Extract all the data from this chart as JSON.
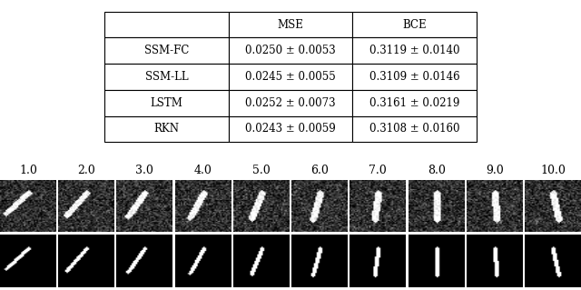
{
  "table_data": [
    [
      "SSM-FC",
      "0.0250 ± 0.0053",
      "0.3119 ± 0.0140"
    ],
    [
      "SSM-LL",
      "0.0245 ± 0.0055",
      "0.3109 ± 0.0146"
    ],
    [
      "LSTM",
      "0.0252 ± 0.0073",
      "0.3161 ± 0.0219"
    ],
    [
      "RKN",
      "0.0243 ± 0.0059",
      "0.3108 ± 0.0160"
    ]
  ],
  "col_labels": [
    "",
    "MSE",
    "BCE"
  ],
  "time_labels": [
    "1.0",
    "2.0",
    "3.0",
    "4.0",
    "5.0",
    "6.0",
    "7.0",
    "8.0",
    "9.0",
    "10.0"
  ],
  "n_images": 10,
  "bg_color": "#ffffff",
  "font_size_table": 8.5,
  "font_size_labels": 9
}
